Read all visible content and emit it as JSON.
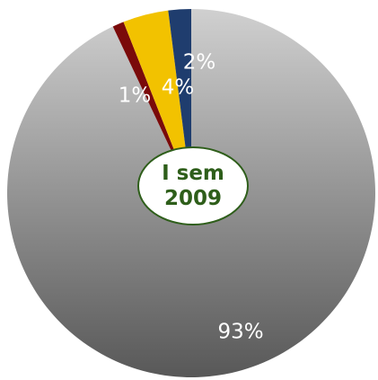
{
  "chart_data": {
    "type": "pie",
    "title": "I sem 2009",
    "categories": [
      null,
      null,
      null,
      null
    ],
    "values": [
      93,
      1,
      4,
      2
    ],
    "value_labels": [
      "93%",
      "1%",
      "4%",
      "2%"
    ],
    "colors": [
      "#9a9a9a",
      "#7a0a0a",
      "#f2c200",
      "#1f3d6e"
    ]
  }
}
